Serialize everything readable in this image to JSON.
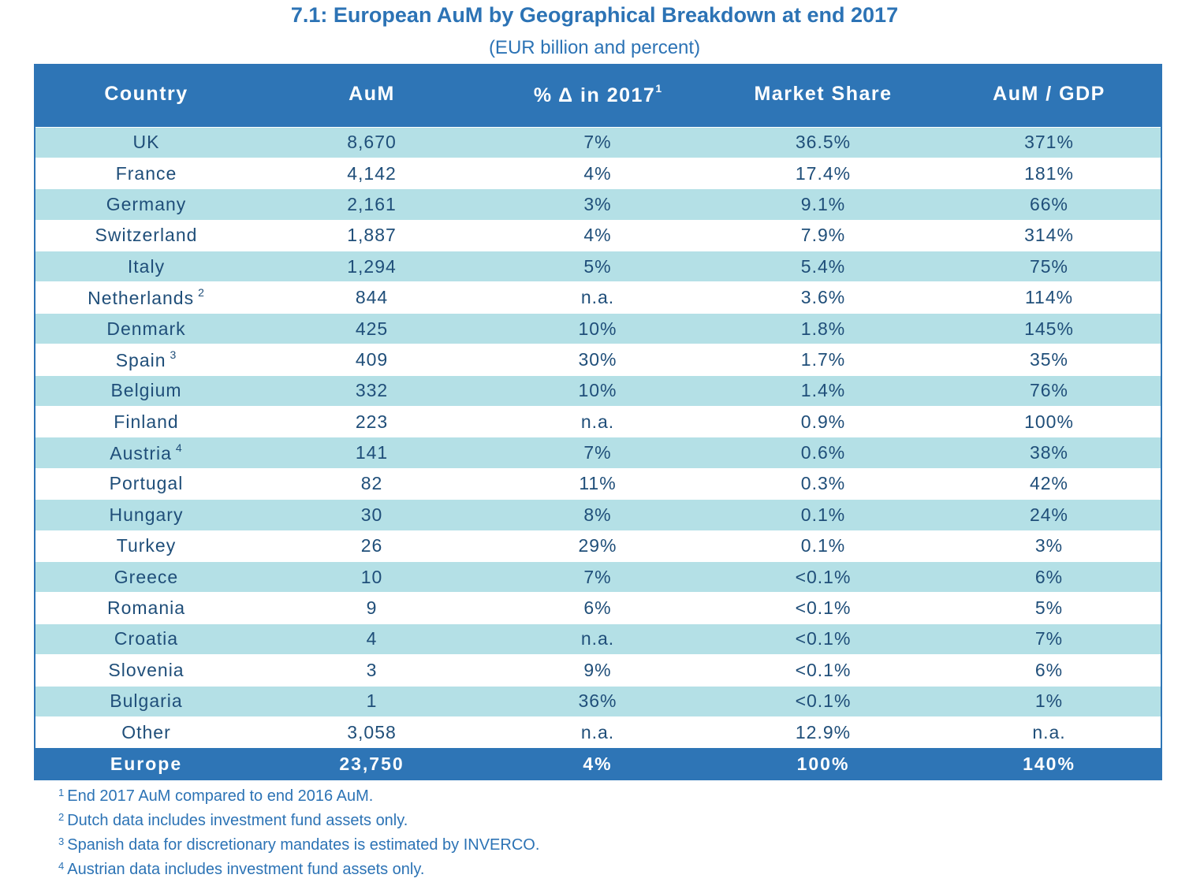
{
  "title": "7.1: European AuM by Geographical Breakdown at end 2017",
  "subtitle": "(EUR billion and percent)",
  "table": {
    "headers": {
      "country": "Country",
      "aum": "AuM",
      "change": "% Δ in 2017",
      "change_sup": "1",
      "share": "Market Share",
      "gdp": "AuM / GDP"
    },
    "rows": [
      {
        "country": "UK",
        "sup": "",
        "aum": "8,670",
        "change": "7%",
        "share": "36.5%",
        "gdp": "371%"
      },
      {
        "country": "France",
        "sup": "",
        "aum": "4,142",
        "change": "4%",
        "share": "17.4%",
        "gdp": "181%"
      },
      {
        "country": "Germany",
        "sup": "",
        "aum": "2,161",
        "change": "3%",
        "share": "9.1%",
        "gdp": "66%"
      },
      {
        "country": "Switzerland",
        "sup": "",
        "aum": "1,887",
        "change": "4%",
        "share": "7.9%",
        "gdp": "314%"
      },
      {
        "country": "Italy",
        "sup": "",
        "aum": "1,294",
        "change": "5%",
        "share": "5.4%",
        "gdp": "75%"
      },
      {
        "country": "Netherlands",
        "sup": "2",
        "aum": "844",
        "change": "n.a.",
        "share": "3.6%",
        "gdp": "114%"
      },
      {
        "country": "Denmark",
        "sup": "",
        "aum": "425",
        "change": "10%",
        "share": "1.8%",
        "gdp": "145%"
      },
      {
        "country": "Spain",
        "sup": "3",
        "aum": "409",
        "change": "30%",
        "share": "1.7%",
        "gdp": "35%"
      },
      {
        "country": "Belgium",
        "sup": "",
        "aum": "332",
        "change": "10%",
        "share": "1.4%",
        "gdp": "76%"
      },
      {
        "country": "Finland",
        "sup": "",
        "aum": "223",
        "change": "n.a.",
        "share": "0.9%",
        "gdp": "100%"
      },
      {
        "country": "Austria",
        "sup": "4",
        "aum": "141",
        "change": "7%",
        "share": "0.6%",
        "gdp": "38%"
      },
      {
        "country": "Portugal",
        "sup": "",
        "aum": "82",
        "change": "11%",
        "share": "0.3%",
        "gdp": "42%"
      },
      {
        "country": "Hungary",
        "sup": "",
        "aum": "30",
        "change": "8%",
        "share": "0.1%",
        "gdp": "24%"
      },
      {
        "country": "Turkey",
        "sup": "",
        "aum": "26",
        "change": "29%",
        "share": "0.1%",
        "gdp": "3%"
      },
      {
        "country": "Greece",
        "sup": "",
        "aum": "10",
        "change": "7%",
        "share": "<0.1%",
        "gdp": "6%"
      },
      {
        "country": "Romania",
        "sup": "",
        "aum": "9",
        "change": "6%",
        "share": "<0.1%",
        "gdp": "5%"
      },
      {
        "country": "Croatia",
        "sup": "",
        "aum": "4",
        "change": "n.a.",
        "share": "<0.1%",
        "gdp": "7%"
      },
      {
        "country": "Slovenia",
        "sup": "",
        "aum": "3",
        "change": "9%",
        "share": "<0.1%",
        "gdp": "6%"
      },
      {
        "country": "Bulgaria",
        "sup": "",
        "aum": "1",
        "change": "36%",
        "share": "<0.1%",
        "gdp": "1%"
      },
      {
        "country": "Other",
        "sup": "",
        "aum": "3,058",
        "change": "n.a.",
        "share": "12.9%",
        "gdp": "n.a."
      }
    ],
    "total": {
      "country": "Europe",
      "aum": "23,750",
      "change": "4%",
      "share": "100%",
      "gdp": "140%"
    }
  },
  "footnotes": [
    {
      "num": "1",
      "text": "End 2017 AuM compared to end 2016 AuM."
    },
    {
      "num": "2",
      "text": "Dutch data includes investment fund assets only."
    },
    {
      "num": "3",
      "text": "Spanish data for discretionary mandates is estimated by INVERCO."
    },
    {
      "num": "4",
      "text": "Austrian data includes investment fund assets only."
    }
  ],
  "colors": {
    "header_bg": "#2e75b6",
    "row_stripe": "#b4e0e6",
    "text_dark_blue": "#1f4e79",
    "title_blue": "#2c73b5"
  }
}
